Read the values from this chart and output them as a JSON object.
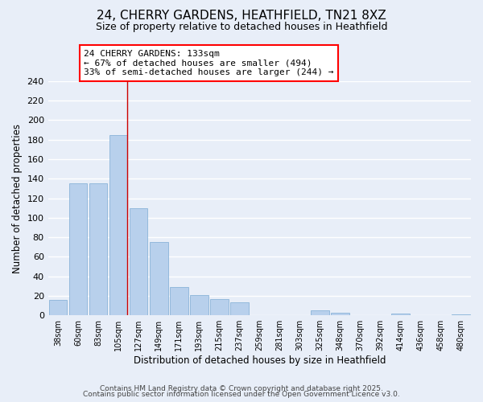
{
  "title": "24, CHERRY GARDENS, HEATHFIELD, TN21 8XZ",
  "subtitle": "Size of property relative to detached houses in Heathfield",
  "xlabel": "Distribution of detached houses by size in Heathfield",
  "ylabel": "Number of detached properties",
  "bar_color": "#b8d0ec",
  "bar_edge_color": "#8ab4d8",
  "background_color": "#e8eef8",
  "grid_color": "#ffffff",
  "bins": [
    "38sqm",
    "60sqm",
    "83sqm",
    "105sqm",
    "127sqm",
    "149sqm",
    "171sqm",
    "193sqm",
    "215sqm",
    "237sqm",
    "259sqm",
    "281sqm",
    "303sqm",
    "325sqm",
    "348sqm",
    "370sqm",
    "392sqm",
    "414sqm",
    "436sqm",
    "458sqm",
    "480sqm"
  ],
  "values": [
    16,
    135,
    135,
    185,
    110,
    75,
    29,
    21,
    17,
    13,
    0,
    0,
    0,
    5,
    3,
    0,
    0,
    2,
    0,
    0,
    1
  ],
  "ylim": [
    0,
    240
  ],
  "yticks": [
    0,
    20,
    40,
    60,
    80,
    100,
    120,
    140,
    160,
    180,
    200,
    220,
    240
  ],
  "annotation_title": "24 CHERRY GARDENS: 133sqm",
  "annotation_line1": "← 67% of detached houses are smaller (494)",
  "annotation_line2": "33% of semi-detached houses are larger (244) →",
  "vline_bin_index": 4,
  "footer1": "Contains HM Land Registry data © Crown copyright and database right 2025.",
  "footer2": "Contains public sector information licensed under the Open Government Licence v3.0."
}
